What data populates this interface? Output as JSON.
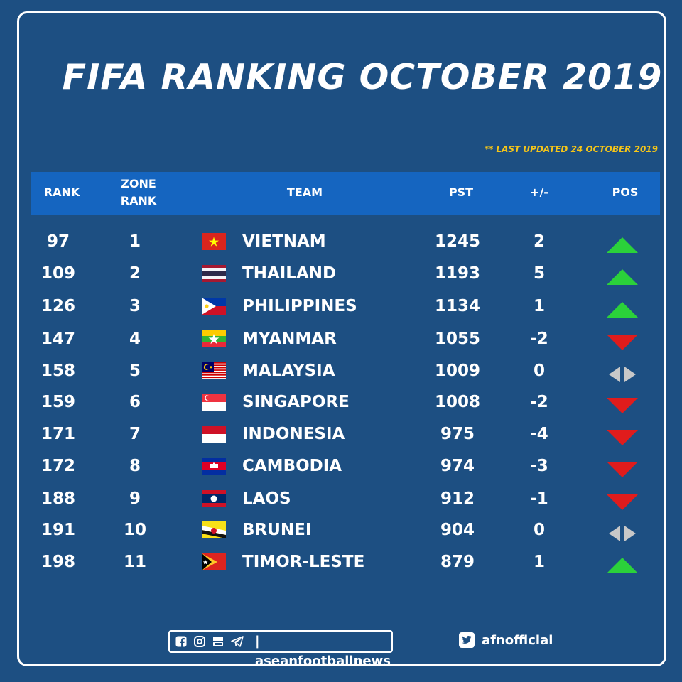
{
  "title": "FIFA RANKING OCTOBER 2019",
  "updated": "** LAST UPDATED 24 OCTOBER 2019",
  "headers": {
    "rank": "RANK",
    "zone_rank_1": "ZONE",
    "zone_rank_2": "RANK",
    "team": "TEAM",
    "pts": "PST",
    "diff": "+/-",
    "pos": "POS"
  },
  "colors": {
    "up": "#2bd13a",
    "down": "#e01c1c",
    "same": "#c8c8c8",
    "accent": "#f5c518",
    "header": "#1565c0",
    "background": "#1d4f82"
  },
  "rows": [
    {
      "rank": "97",
      "zone": "1",
      "team": "VIETNAM",
      "pts": "1245",
      "diff": "2",
      "trend": "up",
      "flag": "vietnam"
    },
    {
      "rank": "109",
      "zone": "2",
      "team": "THAILAND",
      "pts": "1193",
      "diff": "5",
      "trend": "up",
      "flag": "thailand"
    },
    {
      "rank": "126",
      "zone": "3",
      "team": "PHILIPPINES",
      "pts": "1134",
      "diff": "1",
      "trend": "up",
      "flag": "philippines"
    },
    {
      "rank": "147",
      "zone": "4",
      "team": "MYANMAR",
      "pts": "1055",
      "diff": "-2",
      "trend": "down",
      "flag": "myanmar"
    },
    {
      "rank": "158",
      "zone": "5",
      "team": "MALAYSIA",
      "pts": "1009",
      "diff": "0",
      "trend": "same",
      "flag": "malaysia"
    },
    {
      "rank": "159",
      "zone": "6",
      "team": "SINGAPORE",
      "pts": "1008",
      "diff": "-2",
      "trend": "down",
      "flag": "singapore"
    },
    {
      "rank": "171",
      "zone": "7",
      "team": "INDONESIA",
      "pts": "975",
      "diff": "-4",
      "trend": "down",
      "flag": "indonesia"
    },
    {
      "rank": "172",
      "zone": "8",
      "team": "CAMBODIA",
      "pts": "974",
      "diff": "-3",
      "trend": "down",
      "flag": "cambodia"
    },
    {
      "rank": "188",
      "zone": "9",
      "team": "LAOS",
      "pts": "912",
      "diff": "-1",
      "trend": "down",
      "flag": "laos"
    },
    {
      "rank": "191",
      "zone": "10",
      "team": "BRUNEI",
      "pts": "904",
      "diff": "0",
      "trend": "same",
      "flag": "brunei"
    },
    {
      "rank": "198",
      "zone": "11",
      "team": "TIMOR-LESTE",
      "pts": "879",
      "diff": "1",
      "trend": "up",
      "flag": "timor-leste"
    }
  ],
  "footer": {
    "icons": [
      "facebook-icon",
      "instagram-icon",
      "youtube-icon",
      "telegram-icon"
    ],
    "social_handle": "| aseanfootballnews",
    "twitter_handle": "afnofficial"
  }
}
